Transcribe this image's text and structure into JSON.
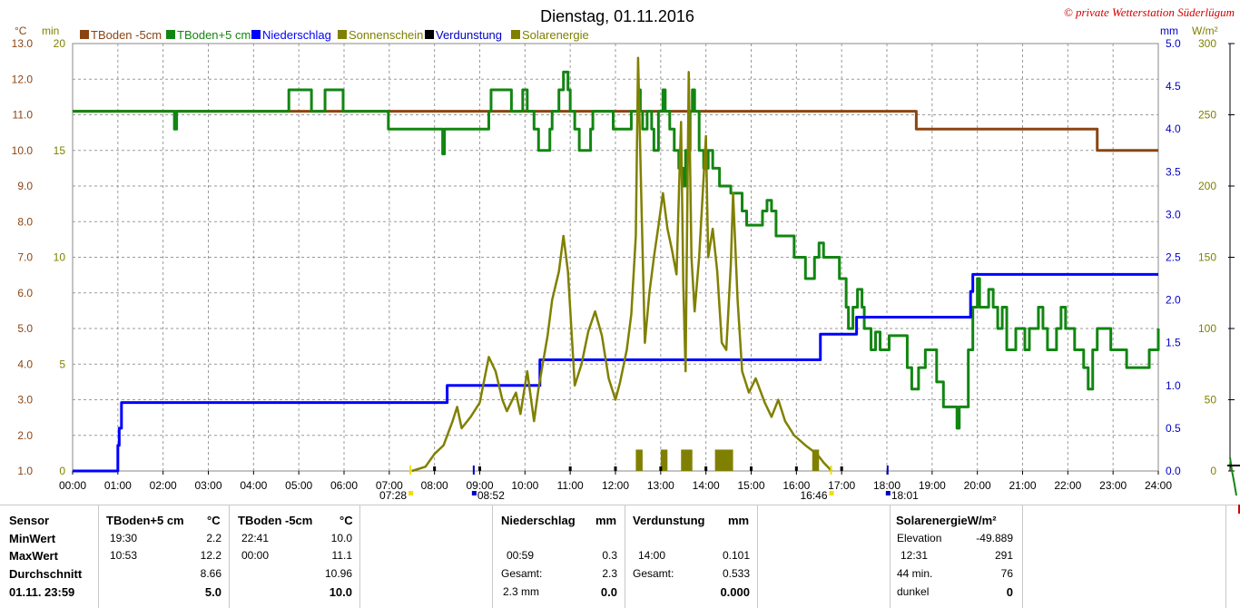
{
  "title": "Dienstag, 01.11.2016",
  "credit": "© private Wetterstation Süderlügum",
  "axis_units": {
    "left_celsius": "°C",
    "left_min": "min",
    "right_mm": "mm",
    "right_wm2": "W/m²"
  },
  "legend": [
    {
      "name": "TBoden -5cm",
      "color": "#8B4513"
    },
    {
      "name": "TBoden+5 cm",
      "color": "#128612"
    },
    {
      "name": "Niederschlag",
      "color": "#0000FF"
    },
    {
      "name": "Sonnenschein",
      "color": "#808000"
    },
    {
      "name": "Verdunstung",
      "color": "#000000"
    },
    {
      "name": "Solarenergie",
      "color": "#808000"
    }
  ],
  "ticks": {
    "x": [
      "00:00",
      "01:00",
      "02:00",
      "03:00",
      "04:00",
      "05:00",
      "06:00",
      "07:00",
      "08:00",
      "09:00",
      "10:00",
      "11:00",
      "12:00",
      "13:00",
      "14:00",
      "15:00",
      "16:00",
      "17:00",
      "18:00",
      "19:00",
      "20:00",
      "21:00",
      "22:00",
      "23:00",
      "24:00"
    ],
    "celsius": [
      "1.0",
      "2.0",
      "3.0",
      "4.0",
      "5.0",
      "6.0",
      "7.0",
      "8.0",
      "9.0",
      "10.0",
      "11.0",
      "12.0",
      "13.0"
    ],
    "minutes": [
      "0",
      "5",
      "10",
      "15",
      "20"
    ],
    "mm": [
      "0.0",
      "0.5",
      "1.0",
      "1.5",
      "2.0",
      "2.5",
      "3.0",
      "3.5",
      "4.0",
      "4.5",
      "5.0"
    ],
    "wm2": [
      "0",
      "50",
      "100",
      "150",
      "200",
      "250",
      "300"
    ]
  },
  "markers": {
    "sunrise": "07:28",
    "sunset": "16:46",
    "t1": "08:52",
    "t2": "18:01"
  },
  "chart_data": {
    "type": "line",
    "title": "Dienstag, 01.11.2016",
    "xlabel": "",
    "x_range": [
      "00:00",
      "24:00"
    ],
    "ylim_celsius": [
      1.0,
      13.0
    ],
    "ylim_minutes": [
      0,
      20
    ],
    "ylim_mm": [
      0.0,
      5.0
    ],
    "ylim_wm2": [
      0,
      300
    ],
    "grid": true,
    "legend_position": "top-left",
    "series": [
      {
        "name": "TBoden -5cm",
        "axis": "celsius",
        "color": "#8B4513",
        "step": true,
        "points": [
          [
            0,
            11.1
          ],
          [
            18.6,
            11.1
          ],
          [
            18.65,
            10.6
          ],
          [
            22.6,
            10.6
          ],
          [
            22.65,
            10.0
          ],
          [
            24,
            10.0
          ]
        ]
      },
      {
        "name": "TBoden+5 cm",
        "axis": "celsius",
        "color": "#128612",
        "step": true,
        "points": [
          [
            0,
            11.1
          ],
          [
            2.2,
            11.1
          ],
          [
            2.25,
            10.6
          ],
          [
            2.3,
            11.1
          ],
          [
            4.75,
            11.1
          ],
          [
            4.78,
            11.7
          ],
          [
            5.25,
            11.7
          ],
          [
            5.28,
            11.1
          ],
          [
            5.55,
            11.1
          ],
          [
            5.58,
            11.7
          ],
          [
            5.95,
            11.7
          ],
          [
            5.98,
            11.1
          ],
          [
            6.95,
            11.1
          ],
          [
            6.98,
            10.6
          ],
          [
            8.15,
            10.6
          ],
          [
            8.18,
            9.9
          ],
          [
            8.22,
            10.6
          ],
          [
            9.15,
            10.6
          ],
          [
            9.2,
            11.1
          ],
          [
            9.25,
            11.7
          ],
          [
            9.65,
            11.7
          ],
          [
            9.7,
            11.1
          ],
          [
            9.9,
            11.1
          ],
          [
            9.95,
            11.7
          ],
          [
            10.05,
            11.1
          ],
          [
            10.2,
            10.6
          ],
          [
            10.3,
            10.0
          ],
          [
            10.5,
            10.0
          ],
          [
            10.55,
            10.6
          ],
          [
            10.6,
            11.1
          ],
          [
            10.75,
            11.7
          ],
          [
            10.85,
            12.2
          ],
          [
            10.95,
            11.7
          ],
          [
            11.0,
            11.1
          ],
          [
            11.1,
            10.6
          ],
          [
            11.2,
            10.0
          ],
          [
            11.4,
            10.0
          ],
          [
            11.45,
            10.6
          ],
          [
            11.5,
            11.1
          ],
          [
            11.9,
            11.1
          ],
          [
            11.95,
            10.6
          ],
          [
            12.3,
            10.6
          ],
          [
            12.35,
            11.1
          ],
          [
            12.5,
            11.7
          ],
          [
            12.55,
            11.1
          ],
          [
            12.6,
            10.6
          ],
          [
            12.7,
            11.1
          ],
          [
            12.8,
            10.6
          ],
          [
            12.85,
            10.0
          ],
          [
            12.95,
            11.1
          ],
          [
            13.05,
            11.7
          ],
          [
            13.1,
            11.1
          ],
          [
            13.2,
            10.6
          ],
          [
            13.3,
            10.0
          ],
          [
            13.4,
            9.5
          ],
          [
            13.5,
            9.0
          ],
          [
            13.55,
            10.0
          ],
          [
            13.65,
            11.1
          ],
          [
            13.7,
            11.7
          ],
          [
            13.75,
            11.1
          ],
          [
            13.85,
            10.0
          ],
          [
            13.95,
            9.5
          ],
          [
            14.05,
            10.0
          ],
          [
            14.15,
            9.5
          ],
          [
            14.3,
            9.0
          ],
          [
            14.5,
            9.0
          ],
          [
            14.55,
            8.8
          ],
          [
            14.75,
            8.8
          ],
          [
            14.8,
            8.3
          ],
          [
            14.9,
            7.9
          ],
          [
            15.2,
            7.9
          ],
          [
            15.25,
            8.3
          ],
          [
            15.35,
            8.6
          ],
          [
            15.45,
            8.3
          ],
          [
            15.55,
            7.6
          ],
          [
            15.9,
            7.6
          ],
          [
            15.95,
            7.0
          ],
          [
            16.15,
            7.0
          ],
          [
            16.2,
            6.4
          ],
          [
            16.35,
            6.4
          ],
          [
            16.4,
            7.0
          ],
          [
            16.5,
            7.4
          ],
          [
            16.6,
            7.0
          ],
          [
            16.9,
            7.0
          ],
          [
            16.95,
            6.4
          ],
          [
            17.05,
            6.4
          ],
          [
            17.1,
            5.6
          ],
          [
            17.15,
            5.0
          ],
          [
            17.25,
            5.6
          ],
          [
            17.35,
            6.1
          ],
          [
            17.45,
            5.6
          ],
          [
            17.5,
            5.0
          ],
          [
            17.65,
            4.4
          ],
          [
            17.75,
            4.9
          ],
          [
            17.85,
            4.4
          ],
          [
            18.0,
            4.4
          ],
          [
            18.05,
            4.8
          ],
          [
            18.4,
            4.8
          ],
          [
            18.45,
            3.9
          ],
          [
            18.55,
            3.3
          ],
          [
            18.7,
            3.9
          ],
          [
            18.85,
            4.4
          ],
          [
            19.05,
            4.4
          ],
          [
            19.1,
            3.5
          ],
          [
            19.25,
            2.8
          ],
          [
            19.5,
            2.8
          ],
          [
            19.55,
            2.2
          ],
          [
            19.6,
            2.8
          ],
          [
            19.75,
            2.8
          ],
          [
            19.8,
            4.4
          ],
          [
            19.9,
            5.6
          ],
          [
            20.0,
            6.4
          ],
          [
            20.05,
            5.6
          ],
          [
            20.2,
            5.6
          ],
          [
            20.25,
            6.1
          ],
          [
            20.35,
            5.6
          ],
          [
            20.45,
            5.0
          ],
          [
            20.55,
            5.6
          ],
          [
            20.65,
            4.4
          ],
          [
            20.85,
            5.0
          ],
          [
            21.05,
            4.4
          ],
          [
            21.15,
            5.0
          ],
          [
            21.3,
            5.0
          ],
          [
            21.35,
            5.6
          ],
          [
            21.45,
            5.0
          ],
          [
            21.55,
            4.4
          ],
          [
            21.7,
            4.4
          ],
          [
            21.75,
            5.0
          ],
          [
            21.85,
            5.6
          ],
          [
            21.95,
            5.0
          ],
          [
            22.1,
            5.0
          ],
          [
            22.15,
            4.4
          ],
          [
            22.25,
            4.4
          ],
          [
            22.35,
            3.9
          ],
          [
            22.45,
            3.3
          ],
          [
            22.55,
            4.4
          ],
          [
            22.65,
            5.0
          ],
          [
            22.9,
            5.0
          ],
          [
            22.95,
            4.4
          ],
          [
            23.25,
            4.4
          ],
          [
            23.3,
            3.9
          ],
          [
            23.75,
            3.9
          ],
          [
            23.8,
            4.4
          ],
          [
            23.95,
            4.4
          ],
          [
            24.0,
            5.0
          ]
        ]
      },
      {
        "name": "Niederschlag",
        "axis": "mm",
        "color": "#0000FF",
        "step": true,
        "points": [
          [
            0,
            0
          ],
          [
            0.98,
            0
          ],
          [
            1.0,
            0.3
          ],
          [
            1.03,
            0.5
          ],
          [
            1.08,
            0.8
          ],
          [
            8.25,
            0.8
          ],
          [
            8.28,
            1.0
          ],
          [
            10.3,
            1.0
          ],
          [
            10.33,
            1.3
          ],
          [
            16.5,
            1.3
          ],
          [
            16.53,
            1.6
          ],
          [
            17.3,
            1.6
          ],
          [
            17.33,
            1.8
          ],
          [
            19.8,
            1.8
          ],
          [
            19.85,
            2.1
          ],
          [
            19.9,
            2.3
          ],
          [
            24,
            2.3
          ]
        ]
      },
      {
        "name": "Solarenergie",
        "axis": "wm2",
        "color": "#808000",
        "step": false,
        "points": [
          [
            7.5,
            0
          ],
          [
            7.8,
            3
          ],
          [
            8.0,
            12
          ],
          [
            8.2,
            18
          ],
          [
            8.4,
            35
          ],
          [
            8.5,
            45
          ],
          [
            8.6,
            30
          ],
          [
            8.8,
            38
          ],
          [
            9.0,
            48
          ],
          [
            9.2,
            80
          ],
          [
            9.35,
            70
          ],
          [
            9.5,
            50
          ],
          [
            9.6,
            42
          ],
          [
            9.8,
            55
          ],
          [
            9.9,
            40
          ],
          [
            10.05,
            70
          ],
          [
            10.2,
            35
          ],
          [
            10.3,
            58
          ],
          [
            10.5,
            95
          ],
          [
            10.6,
            120
          ],
          [
            10.75,
            140
          ],
          [
            10.85,
            165
          ],
          [
            10.95,
            140
          ],
          [
            11.1,
            60
          ],
          [
            11.25,
            75
          ],
          [
            11.4,
            98
          ],
          [
            11.55,
            112
          ],
          [
            11.7,
            95
          ],
          [
            11.85,
            65
          ],
          [
            12.0,
            50
          ],
          [
            12.1,
            62
          ],
          [
            12.25,
            85
          ],
          [
            12.35,
            110
          ],
          [
            12.45,
            165
          ],
          [
            12.5,
            290
          ],
          [
            12.58,
            180
          ],
          [
            12.65,
            90
          ],
          [
            12.75,
            125
          ],
          [
            12.85,
            150
          ],
          [
            12.95,
            172
          ],
          [
            13.05,
            195
          ],
          [
            13.15,
            170
          ],
          [
            13.25,
            155
          ],
          [
            13.35,
            138
          ],
          [
            13.45,
            245
          ],
          [
            13.5,
            130
          ],
          [
            13.55,
            70
          ],
          [
            13.62,
            280
          ],
          [
            13.68,
            150
          ],
          [
            13.75,
            112
          ],
          [
            13.85,
            150
          ],
          [
            14.0,
            235
          ],
          [
            14.05,
            150
          ],
          [
            14.15,
            170
          ],
          [
            14.25,
            140
          ],
          [
            14.35,
            90
          ],
          [
            14.45,
            85
          ],
          [
            14.55,
            145
          ],
          [
            14.6,
            195
          ],
          [
            14.7,
            120
          ],
          [
            14.8,
            70
          ],
          [
            14.95,
            55
          ],
          [
            15.1,
            65
          ],
          [
            15.3,
            48
          ],
          [
            15.45,
            38
          ],
          [
            15.6,
            50
          ],
          [
            15.75,
            35
          ],
          [
            15.95,
            25
          ],
          [
            16.2,
            18
          ],
          [
            16.45,
            12
          ],
          [
            16.6,
            6
          ],
          [
            16.78,
            0
          ]
        ]
      },
      {
        "name": "Sonnenschein",
        "axis": "minutes",
        "color": "#808000",
        "step": false,
        "bars": [
          [
            12.45,
            12.6,
            1
          ],
          [
            13.0,
            13.15,
            1
          ],
          [
            13.45,
            13.7,
            1
          ],
          [
            14.2,
            14.6,
            1
          ],
          [
            16.35,
            16.5,
            1
          ]
        ]
      },
      {
        "name": "Verdunstung",
        "axis": "mm",
        "color": "#000000",
        "step": false,
        "ticks": [
          8.0,
          9.0,
          11.0,
          12.0,
          13.0,
          14.0,
          15.0,
          16.0,
          17.0
        ]
      }
    ]
  },
  "table": {
    "sensor": {
      "header": "Sensor",
      "rows": [
        "MinWert",
        "MaxWert",
        "Durchschnitt",
        "01.11. 23:59"
      ]
    },
    "tb5": {
      "header": "TBoden+5 cm",
      "unit": "°C",
      "rows": [
        [
          "19:30",
          "2.2"
        ],
        [
          "10:53",
          "12.2"
        ],
        [
          "",
          "8.66"
        ],
        [
          "",
          "5.0"
        ]
      ]
    },
    "tbm5": {
      "header": "TBoden -5cm",
      "unit": "°C",
      "rows": [
        [
          "22:41",
          "10.0"
        ],
        [
          "00:00",
          "11.1"
        ],
        [
          "",
          "10.96"
        ],
        [
          "",
          "10.0"
        ]
      ]
    },
    "nieder": {
      "header": "Niederschlag",
      "unit": "mm",
      "rows": [
        [
          "",
          ""
        ],
        [
          "00:59",
          "0.3"
        ],
        [
          "Gesamt:",
          "2.3"
        ],
        [
          "2.3 mm",
          "0.0"
        ]
      ]
    },
    "verd": {
      "header": "Verdunstung",
      "unit": "mm",
      "rows": [
        [
          "",
          ""
        ],
        [
          "14:00",
          "0.101"
        ],
        [
          "Gesamt:",
          "0.533"
        ],
        [
          "",
          "0.000"
        ]
      ]
    },
    "solar": {
      "header": "SolarenergieW/m²",
      "rows": [
        [
          "Elevation",
          "-49.889"
        ],
        [
          "12:31",
          "291"
        ],
        [
          "44 min.",
          "76"
        ],
        [
          "dunkel",
          "0"
        ]
      ]
    }
  }
}
